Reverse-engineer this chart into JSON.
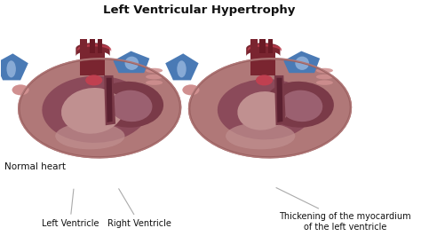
{
  "title": "Left Ventricular Hypertrophy",
  "title_fontsize": 9.5,
  "title_color": "#111111",
  "title_fontweight": "bold",
  "bg_color": "#ffffff",
  "labels": {
    "normal_heart": "Normal heart",
    "left_ventricle": "Left Ventricle",
    "right_ventricle": "Right Ventricle",
    "thickening": "Thickening of the myocardium\nof the left ventricle"
  },
  "label_fontsize": 7.0,
  "label_color": "#111111",
  "heart_outer_color": "#b07878",
  "heart_inner_lv_color": "#8b4a5a",
  "heart_inner_rv_color": "#7a3a48",
  "heart_lv_cavity_color": "#c09090",
  "heart_rv_cavity_color": "#9b6070",
  "aorta_color": "#7a2530",
  "aorta_light": "#c04050",
  "blue_color": "#4a7ab5",
  "blue_light": "#88aad5",
  "pink_vessel_color": "#d09090",
  "annotation_line_color": "#aaaaaa",
  "h1cx": 0.255,
  "h1cy": 0.54,
  "h2cx": 0.685,
  "h2cy": 0.54
}
